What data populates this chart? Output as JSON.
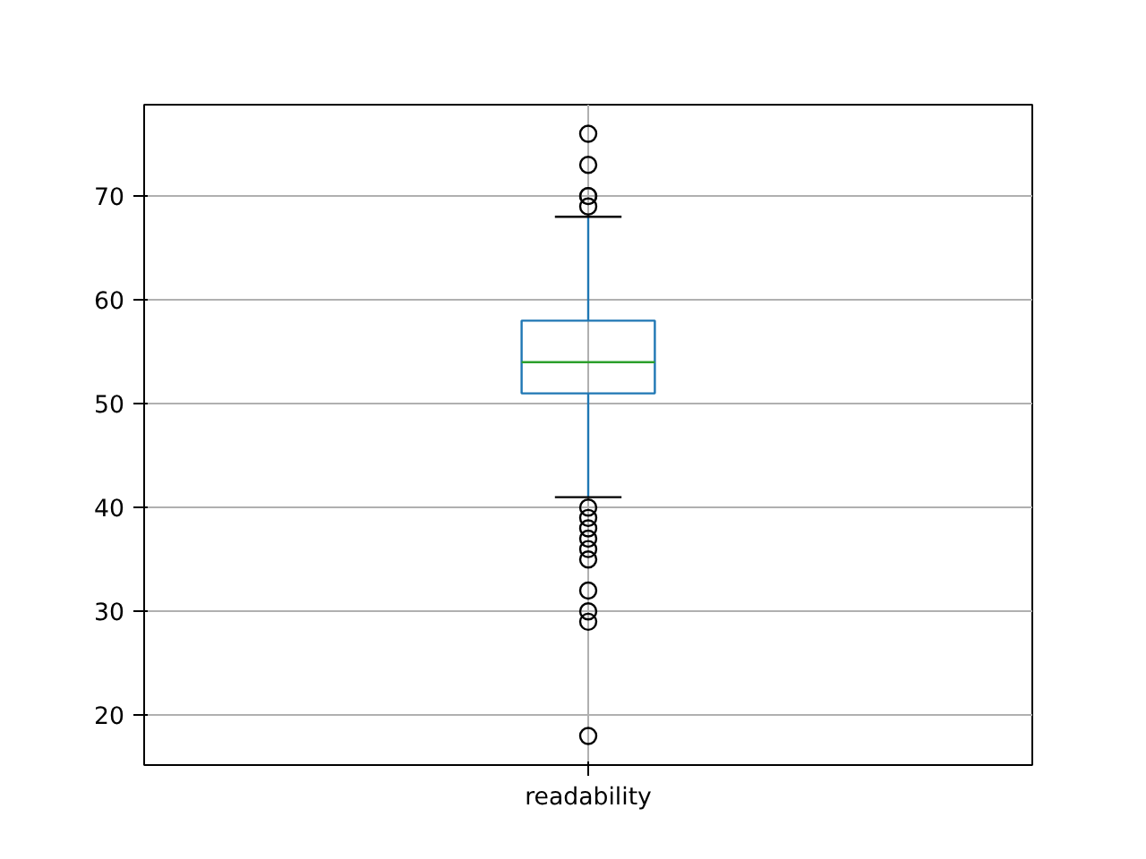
{
  "chart_data": {
    "type": "box",
    "categories": [
      "readability"
    ],
    "boxes": [
      {
        "low": 41,
        "q1": 51,
        "median": 54,
        "q3": 58,
        "high": 68,
        "outliers": [
          76,
          73,
          70,
          70,
          69,
          40,
          39,
          38,
          37,
          36,
          35,
          32,
          30,
          29,
          18
        ]
      }
    ],
    "color": "#1f77b4",
    "ylim": [
      15.2,
      78.8
    ],
    "yticks": [
      20,
      30,
      40,
      50,
      60,
      70
    ],
    "grid": true
  }
}
